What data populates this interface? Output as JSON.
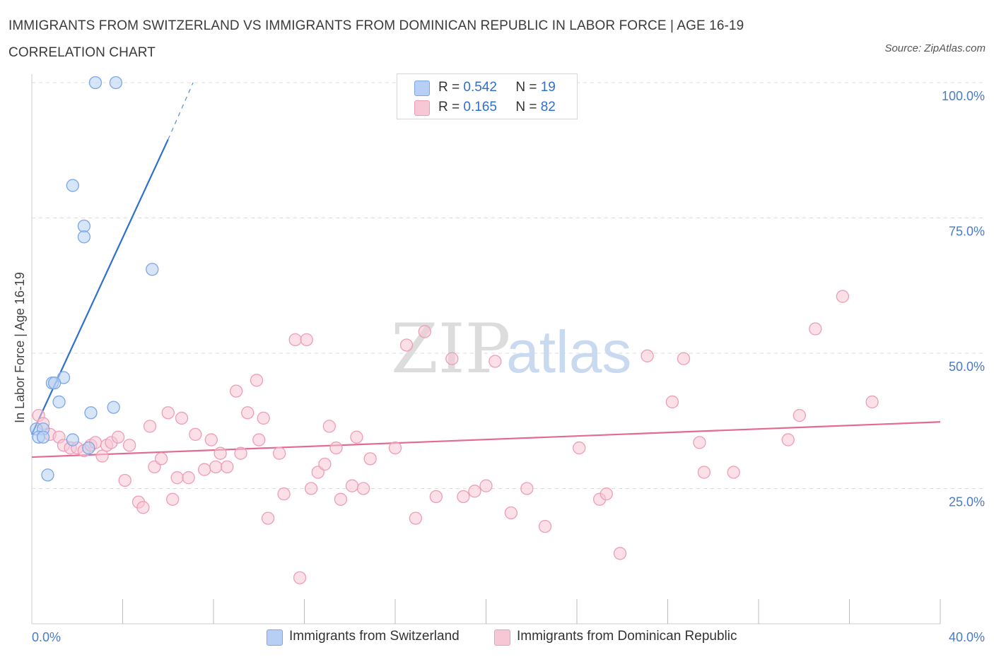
{
  "title": "IMMIGRANTS FROM SWITZERLAND VS IMMIGRANTS FROM DOMINICAN REPUBLIC IN LABOR FORCE | AGE 16-19 CORRELATION CHART",
  "source": "Source: ZipAtlas.com",
  "watermark": {
    "zip": "ZIP",
    "atlas": "atlas"
  },
  "legend": {
    "r_label": "R =",
    "n_label": "N =",
    "series": [
      {
        "r": "0.542",
        "n": "19",
        "fill": "#b7cff4",
        "stroke": "#7ea6e4"
      },
      {
        "r": "0.165",
        "n": "82",
        "fill": "#f8c7d6",
        "stroke": "#ee9db6"
      }
    ]
  },
  "chart_data": {
    "type": "scatter",
    "title": "IMMIGRANTS FROM SWITZERLAND VS IMMIGRANTS FROM DOMINICAN REPUBLIC IN LABOR FORCE | AGE 16-19 CORRELATION CHART",
    "ylabel": "In Labor Force | Age 16-19",
    "xlabel": "",
    "xlim": [
      0,
      40
    ],
    "ylim": [
      0,
      100
    ],
    "x_tick_labels": [
      "0.0%",
      "40.0%"
    ],
    "y_ticks": [
      25,
      50,
      75,
      100
    ],
    "y_tick_labels": [
      "25.0%",
      "50.0%",
      "75.0%",
      "100.0%"
    ],
    "grid": true,
    "legend_position": "top-center",
    "series": [
      {
        "name": "Immigrants from Switzerland",
        "color": "#2f6fcf",
        "points": [
          [
            2.8,
            100
          ],
          [
            3.7,
            100
          ],
          [
            1.8,
            81
          ],
          [
            2.3,
            73.5
          ],
          [
            2.3,
            71.5
          ],
          [
            5.3,
            65.5
          ],
          [
            1.4,
            45.5
          ],
          [
            0.9,
            44.5
          ],
          [
            1.0,
            44.5
          ],
          [
            1.2,
            41
          ],
          [
            2.6,
            39
          ],
          [
            3.6,
            40
          ],
          [
            0.2,
            36
          ],
          [
            0.5,
            36
          ],
          [
            0.3,
            34.5
          ],
          [
            0.5,
            34.5
          ],
          [
            1.8,
            34
          ],
          [
            2.5,
            32.5
          ],
          [
            0.7,
            27.5
          ]
        ],
        "trend": {
          "x0": 0.0,
          "y0": 35.0,
          "x1": 6.0,
          "y1": 89.5,
          "dash_x1": 7.1,
          "dash_y1": 100
        }
      },
      {
        "name": "Immigrants from Dominican Republic",
        "color": "#e26a93",
        "points": [
          [
            0.3,
            38.5
          ],
          [
            0.5,
            37
          ],
          [
            0.8,
            35
          ],
          [
            1.2,
            34.5
          ],
          [
            1.4,
            33
          ],
          [
            1.7,
            32.5
          ],
          [
            2.0,
            32.5
          ],
          [
            2.3,
            32
          ],
          [
            2.6,
            33
          ],
          [
            2.8,
            33.5
          ],
          [
            3.1,
            31
          ],
          [
            3.3,
            33
          ],
          [
            3.5,
            33.5
          ],
          [
            3.8,
            34.5
          ],
          [
            4.3,
            33
          ],
          [
            4.1,
            26.5
          ],
          [
            4.7,
            22.5
          ],
          [
            4.9,
            21.5
          ],
          [
            5.2,
            36.5
          ],
          [
            5.4,
            29
          ],
          [
            5.7,
            30.5
          ],
          [
            6.0,
            39
          ],
          [
            6.2,
            23
          ],
          [
            6.4,
            27
          ],
          [
            6.6,
            38
          ],
          [
            6.9,
            27
          ],
          [
            7.2,
            35
          ],
          [
            7.6,
            28.5
          ],
          [
            7.9,
            34
          ],
          [
            8.1,
            29
          ],
          [
            8.3,
            31.5
          ],
          [
            8.6,
            29
          ],
          [
            9.0,
            43
          ],
          [
            9.2,
            31.5
          ],
          [
            9.5,
            39
          ],
          [
            9.9,
            45
          ],
          [
            10.0,
            34
          ],
          [
            10.2,
            38
          ],
          [
            10.4,
            19.5
          ],
          [
            10.9,
            31.5
          ],
          [
            11.1,
            24
          ],
          [
            11.6,
            52.5
          ],
          [
            11.8,
            8.5
          ],
          [
            12.1,
            52.5
          ],
          [
            12.3,
            25
          ],
          [
            12.6,
            28
          ],
          [
            12.9,
            29.5
          ],
          [
            13.1,
            36.5
          ],
          [
            13.4,
            32.5
          ],
          [
            13.6,
            23
          ],
          [
            14.1,
            25.5
          ],
          [
            14.3,
            34.5
          ],
          [
            14.6,
            25
          ],
          [
            14.9,
            30.5
          ],
          [
            16.0,
            32.5
          ],
          [
            16.5,
            51.5
          ],
          [
            16.9,
            19.5
          ],
          [
            17.3,
            54
          ],
          [
            17.8,
            23.5
          ],
          [
            18.5,
            49
          ],
          [
            19.0,
            23.5
          ],
          [
            19.5,
            24.5
          ],
          [
            20.4,
            48.5
          ],
          [
            20.0,
            25.5
          ],
          [
            21.1,
            20.5
          ],
          [
            21.8,
            25
          ],
          [
            22.6,
            18
          ],
          [
            24.1,
            32.5
          ],
          [
            25.0,
            23
          ],
          [
            25.3,
            24
          ],
          [
            25.9,
            13
          ],
          [
            27.1,
            49.5
          ],
          [
            28.2,
            41
          ],
          [
            28.7,
            49
          ],
          [
            29.4,
            33.5
          ],
          [
            29.6,
            28
          ],
          [
            30.9,
            28
          ],
          [
            33.3,
            34
          ],
          [
            33.8,
            38.5
          ],
          [
            34.5,
            54.5
          ],
          [
            35.7,
            60.5
          ],
          [
            37.0,
            41
          ]
        ],
        "trend": {
          "x0": 0.0,
          "y0": 30.8,
          "x1": 40.0,
          "y1": 37.3
        }
      }
    ]
  }
}
